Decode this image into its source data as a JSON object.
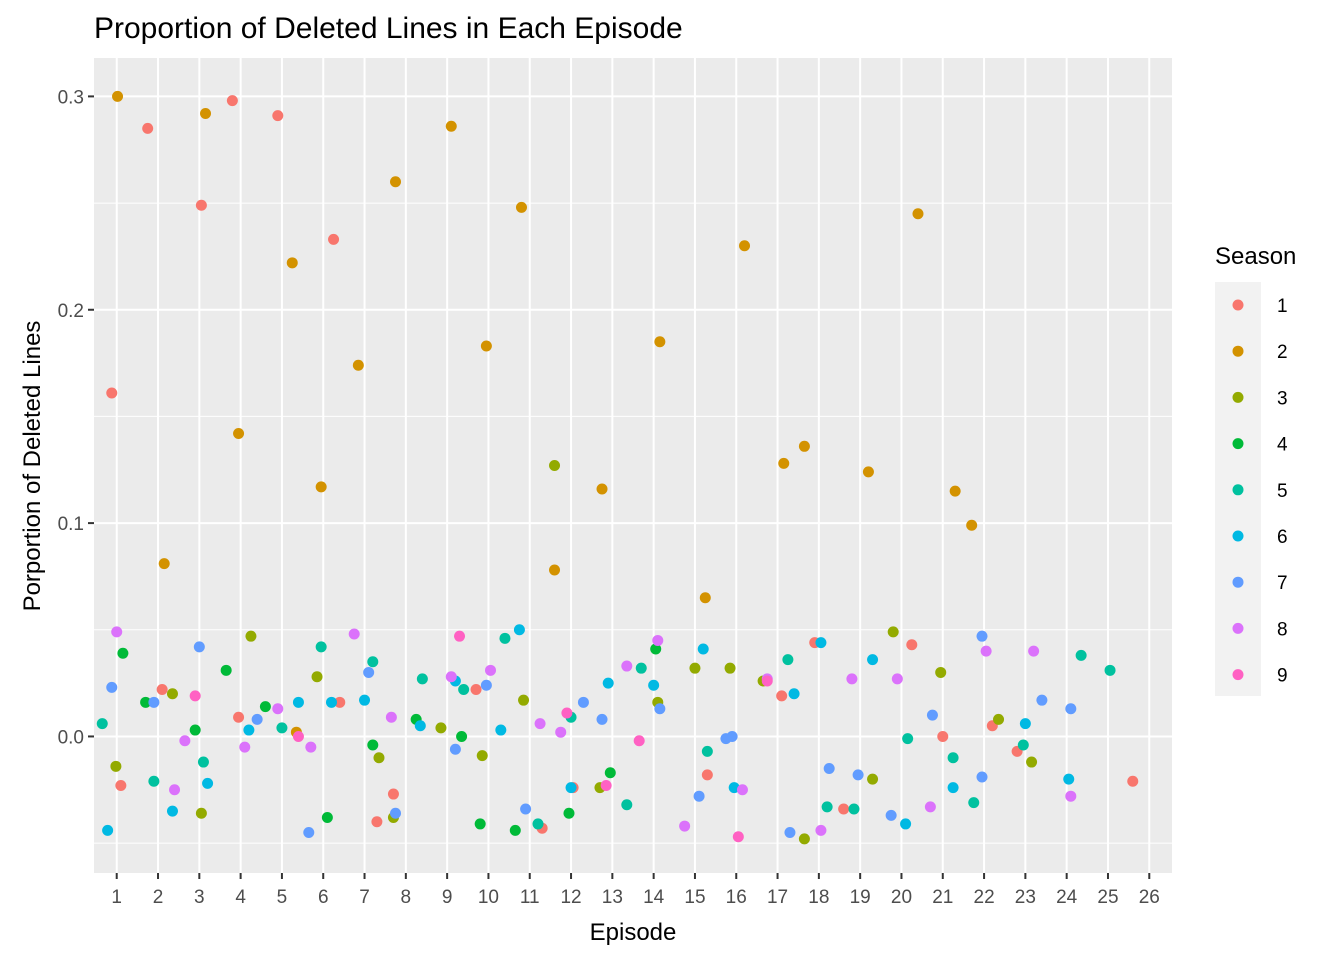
{
  "chart_data": {
    "type": "scatter",
    "title": "Proportion of Deleted Lines in Each Episode",
    "xlabel": "Episode",
    "ylabel": "Porportion of Deleted Lines",
    "x_ticks": [
      "1",
      "2",
      "3",
      "4",
      "5",
      "6",
      "7",
      "8",
      "9",
      "10",
      "11",
      "12",
      "13",
      "14",
      "15",
      "16",
      "17",
      "18",
      "19",
      "20",
      "21",
      "22",
      "23",
      "24",
      "25",
      "26"
    ],
    "y_ticks": [
      {
        "value": 0.0,
        "label": "0.0"
      },
      {
        "value": 0.1,
        "label": "0.1"
      },
      {
        "value": 0.2,
        "label": "0.2"
      },
      {
        "value": 0.3,
        "label": "0.3"
      }
    ],
    "xlim": [
      0.45,
      26.55
    ],
    "ylim": [
      -0.064,
      0.318
    ],
    "grid": true,
    "legend_title": "Season",
    "legend_position": "right",
    "colors": [
      "#F8766D",
      "#D39200",
      "#93AA00",
      "#00BA38",
      "#00C19F",
      "#00B9E3",
      "#619CFF",
      "#DB72FB",
      "#FF61C3"
    ],
    "series": [
      {
        "name": "1",
        "points": [
          [
            0.88,
            0.161
          ],
          [
            1.1,
            -0.023
          ],
          [
            1.75,
            0.285
          ],
          [
            2.1,
            0.022
          ],
          [
            3.05,
            0.249
          ],
          [
            3.8,
            0.298
          ],
          [
            3.95,
            0.009
          ],
          [
            4.9,
            0.291
          ],
          [
            6.25,
            0.233
          ],
          [
            6.4,
            0.016
          ],
          [
            7.3,
            -0.04
          ],
          [
            7.7,
            -0.027
          ],
          [
            9.7,
            0.022
          ],
          [
            11.3,
            -0.043
          ],
          [
            12.05,
            -0.024
          ],
          [
            15.3,
            -0.018
          ],
          [
            17.1,
            0.019
          ],
          [
            17.9,
            0.044
          ],
          [
            18.6,
            -0.034
          ],
          [
            20.25,
            0.043
          ],
          [
            21.0,
            0.0
          ],
          [
            22.2,
            0.005
          ],
          [
            22.8,
            -0.007
          ],
          [
            25.6,
            -0.021
          ]
        ]
      },
      {
        "name": "2",
        "points": [
          [
            1.02,
            0.3
          ],
          [
            2.15,
            0.081
          ],
          [
            3.15,
            0.292
          ],
          [
            3.95,
            0.142
          ],
          [
            5.25,
            0.222
          ],
          [
            5.95,
            0.117
          ],
          [
            6.85,
            0.174
          ],
          [
            7.75,
            0.26
          ],
          [
            9.1,
            0.286
          ],
          [
            9.95,
            0.183
          ],
          [
            10.8,
            0.248
          ],
          [
            11.6,
            0.078
          ],
          [
            12.75,
            0.116
          ],
          [
            14.15,
            0.185
          ],
          [
            15.25,
            0.065
          ],
          [
            16.2,
            0.23
          ],
          [
            17.15,
            0.128
          ],
          [
            17.65,
            0.136
          ],
          [
            19.2,
            0.124
          ],
          [
            20.4,
            0.245
          ],
          [
            21.3,
            0.115
          ],
          [
            21.7,
            0.099
          ],
          [
            5.35,
            0.002
          ]
        ]
      },
      {
        "name": "3",
        "points": [
          [
            0.98,
            -0.014
          ],
          [
            2.35,
            0.02
          ],
          [
            3.05,
            -0.036
          ],
          [
            4.25,
            0.047
          ],
          [
            5.85,
            0.028
          ],
          [
            7.35,
            -0.01
          ],
          [
            7.7,
            -0.038
          ],
          [
            8.85,
            0.004
          ],
          [
            9.85,
            -0.009
          ],
          [
            10.85,
            0.017
          ],
          [
            11.6,
            0.127
          ],
          [
            12.7,
            -0.024
          ],
          [
            14.1,
            0.016
          ],
          [
            15.0,
            0.032
          ],
          [
            15.85,
            0.032
          ],
          [
            16.65,
            0.026
          ],
          [
            17.65,
            -0.048
          ],
          [
            19.3,
            -0.02
          ],
          [
            19.8,
            0.049
          ],
          [
            20.95,
            0.03
          ],
          [
            22.35,
            0.008
          ],
          [
            23.15,
            -0.012
          ]
        ]
      },
      {
        "name": "4",
        "points": [
          [
            1.15,
            0.039
          ],
          [
            1.7,
            0.016
          ],
          [
            2.9,
            0.003
          ],
          [
            3.65,
            0.031
          ],
          [
            4.6,
            0.014
          ],
          [
            6.1,
            -0.038
          ],
          [
            7.2,
            -0.004
          ],
          [
            8.25,
            0.008
          ],
          [
            9.35,
            0.0
          ],
          [
            9.8,
            -0.041
          ],
          [
            10.65,
            -0.044
          ],
          [
            11.95,
            -0.036
          ],
          [
            12.95,
            -0.017
          ],
          [
            14.05,
            0.041
          ]
        ]
      },
      {
        "name": "5",
        "points": [
          [
            0.65,
            0.006
          ],
          [
            1.9,
            -0.021
          ],
          [
            3.1,
            -0.012
          ],
          [
            5.0,
            0.004
          ],
          [
            5.95,
            0.042
          ],
          [
            7.2,
            0.035
          ],
          [
            8.4,
            0.027
          ],
          [
            9.4,
            0.022
          ],
          [
            10.4,
            0.046
          ],
          [
            11.2,
            -0.041
          ],
          [
            12.0,
            0.009
          ],
          [
            13.35,
            -0.032
          ],
          [
            13.7,
            0.032
          ],
          [
            15.3,
            -0.007
          ],
          [
            17.25,
            0.036
          ],
          [
            18.2,
            -0.033
          ],
          [
            18.85,
            -0.034
          ],
          [
            20.15,
            -0.001
          ],
          [
            21.25,
            -0.01
          ],
          [
            21.75,
            -0.031
          ],
          [
            22.95,
            -0.004
          ],
          [
            24.35,
            0.038
          ],
          [
            25.05,
            0.031
          ]
        ]
      },
      {
        "name": "6",
        "points": [
          [
            0.78,
            -0.044
          ],
          [
            2.35,
            -0.035
          ],
          [
            3.2,
            -0.022
          ],
          [
            4.2,
            0.003
          ],
          [
            5.4,
            0.016
          ],
          [
            6.2,
            0.016
          ],
          [
            7.0,
            0.017
          ],
          [
            8.35,
            0.005
          ],
          [
            9.2,
            0.026
          ],
          [
            10.3,
            0.003
          ],
          [
            10.75,
            0.05
          ],
          [
            12.0,
            -0.024
          ],
          [
            12.9,
            0.025
          ],
          [
            14.0,
            0.024
          ],
          [
            15.2,
            0.041
          ],
          [
            15.95,
            -0.024
          ],
          [
            17.4,
            0.02
          ],
          [
            18.05,
            0.044
          ],
          [
            19.3,
            0.036
          ],
          [
            20.1,
            -0.041
          ],
          [
            21.25,
            -0.024
          ],
          [
            23.0,
            0.006
          ],
          [
            24.05,
            -0.02
          ]
        ]
      },
      {
        "name": "7",
        "points": [
          [
            0.88,
            0.023
          ],
          [
            1.9,
            0.016
          ],
          [
            3.0,
            0.042
          ],
          [
            4.4,
            0.008
          ],
          [
            5.65,
            -0.045
          ],
          [
            7.1,
            0.03
          ],
          [
            7.75,
            -0.036
          ],
          [
            9.2,
            -0.006
          ],
          [
            9.95,
            0.024
          ],
          [
            10.9,
            -0.034
          ],
          [
            12.3,
            0.016
          ],
          [
            12.75,
            0.008
          ],
          [
            14.15,
            0.013
          ],
          [
            15.1,
            -0.028
          ],
          [
            15.75,
            -0.001
          ],
          [
            15.9,
            0.0
          ],
          [
            17.3,
            -0.045
          ],
          [
            18.25,
            -0.015
          ],
          [
            18.95,
            -0.018
          ],
          [
            19.75,
            -0.037
          ],
          [
            20.75,
            0.01
          ],
          [
            21.95,
            0.047
          ],
          [
            21.95,
            -0.019
          ],
          [
            23.4,
            0.017
          ],
          [
            24.1,
            0.013
          ]
        ]
      },
      {
        "name": "8",
        "points": [
          [
            1.0,
            0.049
          ],
          [
            2.4,
            -0.025
          ],
          [
            2.65,
            -0.002
          ],
          [
            4.1,
            -0.005
          ],
          [
            4.9,
            0.013
          ],
          [
            5.7,
            -0.005
          ],
          [
            6.75,
            0.048
          ],
          [
            7.65,
            0.009
          ],
          [
            9.1,
            0.028
          ],
          [
            10.05,
            0.031
          ],
          [
            11.25,
            0.006
          ],
          [
            11.75,
            0.002
          ],
          [
            13.35,
            0.033
          ],
          [
            14.1,
            0.045
          ],
          [
            14.75,
            -0.042
          ],
          [
            16.15,
            -0.025
          ],
          [
            16.75,
            0.027
          ],
          [
            18.05,
            -0.044
          ],
          [
            18.8,
            0.027
          ],
          [
            19.9,
            0.027
          ],
          [
            20.7,
            -0.033
          ],
          [
            22.05,
            0.04
          ],
          [
            23.2,
            0.04
          ],
          [
            24.1,
            -0.028
          ]
        ]
      },
      {
        "name": "9",
        "points": [
          [
            2.9,
            0.019
          ],
          [
            5.4,
            0.0
          ],
          [
            9.3,
            0.047
          ],
          [
            11.9,
            0.011
          ],
          [
            12.85,
            -0.023
          ],
          [
            13.65,
            -0.002
          ],
          [
            16.05,
            -0.047
          ],
          [
            16.75,
            0.026
          ]
        ]
      }
    ]
  }
}
